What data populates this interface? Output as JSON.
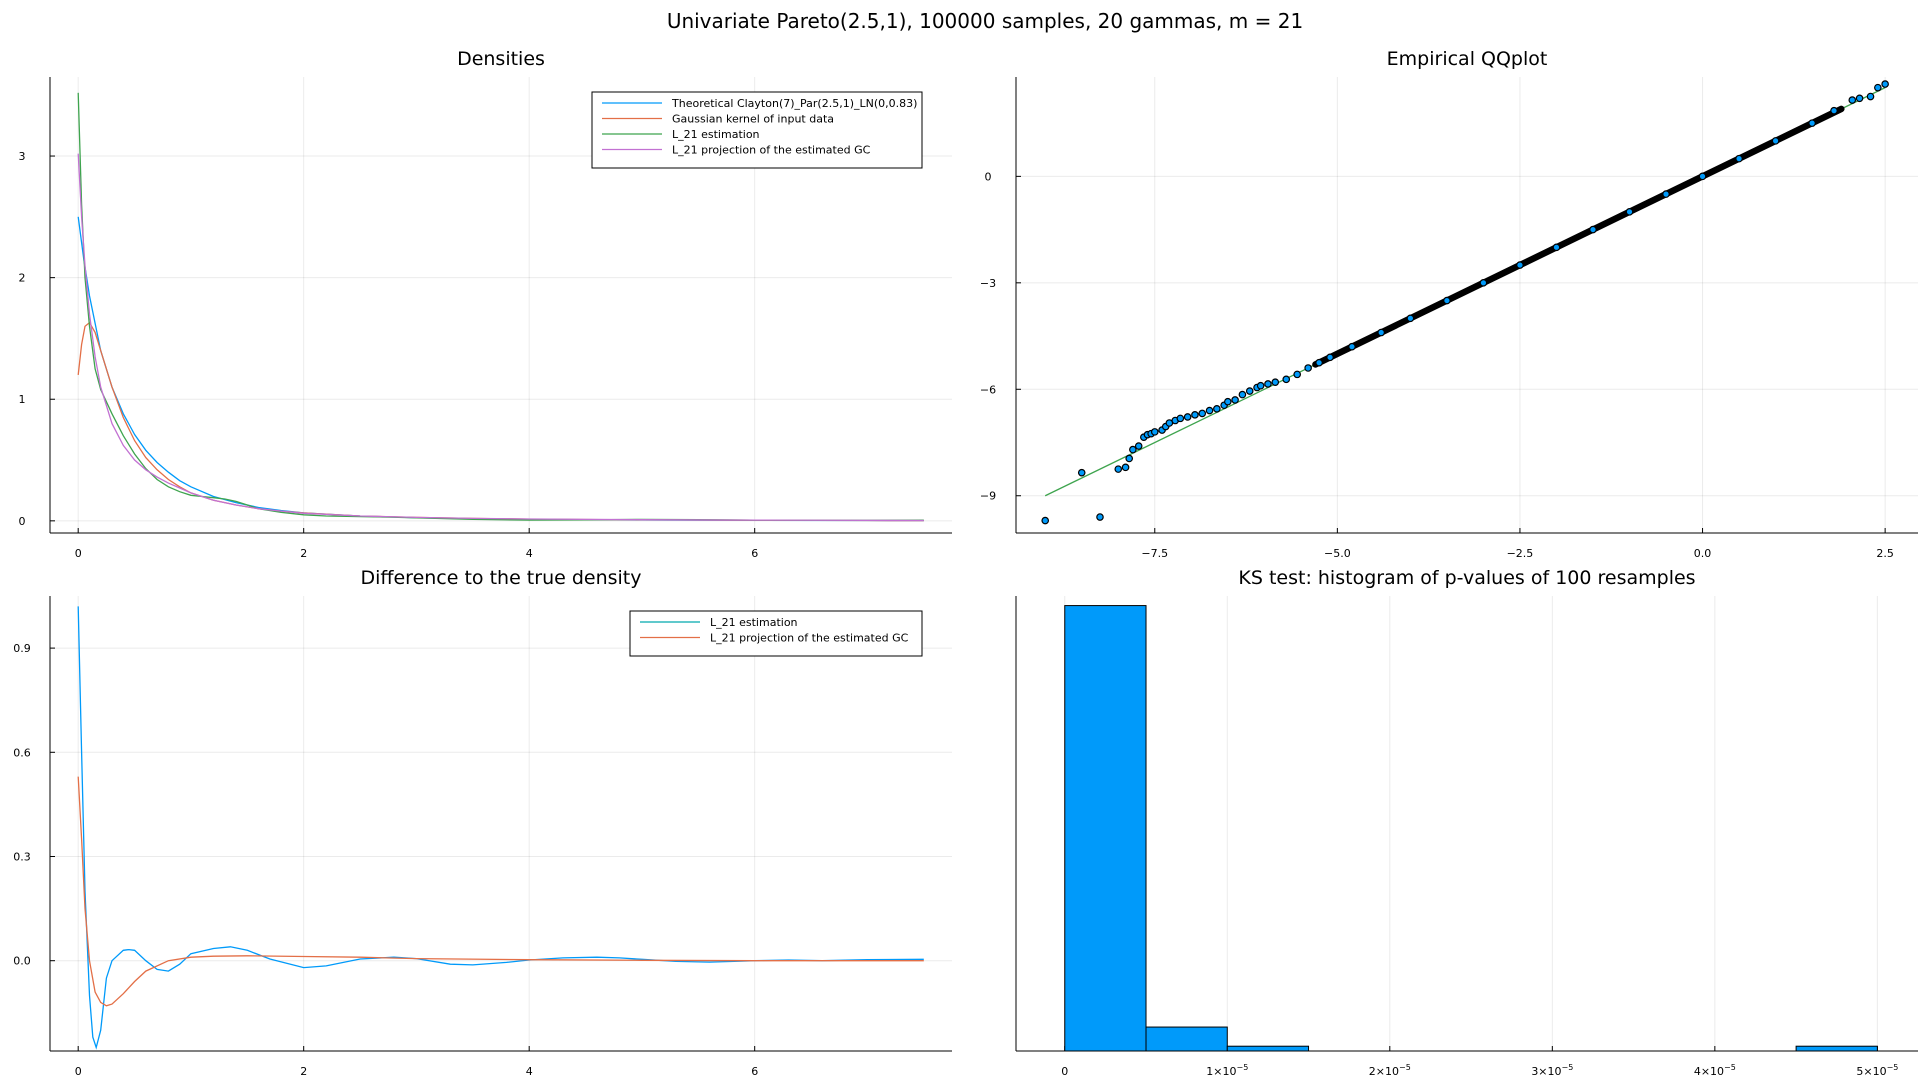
{
  "suptitle": "Univariate Pareto(2.5,1), 100000 samples, 20 gammas, m = 21",
  "colors": {
    "blue": "#009AFA",
    "orange": "#E36F47",
    "green": "#3EA44E",
    "purple": "#C271D2",
    "teal": "#00A9AD",
    "hist_fill": "#009AFA"
  },
  "chart_data": [
    {
      "type": "line",
      "title": "Densities",
      "xlabel": "",
      "ylabel": "",
      "xlim": [
        -0.25,
        7.75
      ],
      "ylim": [
        -0.1,
        3.65
      ],
      "xticks": [
        0,
        2,
        4,
        6
      ],
      "xtick_labels": [
        "0",
        "2",
        "4",
        "6"
      ],
      "yticks": [
        0,
        1,
        2,
        3
      ],
      "ytick_labels": [
        "0",
        "1",
        "2",
        "3"
      ],
      "legend_position": "top-right",
      "series": [
        {
          "name": "Theoretical Clayton(7)_Par(2.5,1)_LN(0,0.83)",
          "color": "#009AFA",
          "x": [
            0,
            0.05,
            0.1,
            0.2,
            0.3,
            0.4,
            0.5,
            0.6,
            0.7,
            0.8,
            0.9,
            1.0,
            1.2,
            1.4,
            1.6,
            1.8,
            2.0,
            2.5,
            3.0,
            3.5,
            4.0,
            5.0,
            6.0,
            7.0,
            7.5
          ],
          "y": [
            2.5,
            2.15,
            1.85,
            1.4,
            1.1,
            0.88,
            0.71,
            0.58,
            0.48,
            0.4,
            0.33,
            0.28,
            0.2,
            0.15,
            0.11,
            0.085,
            0.065,
            0.04,
            0.026,
            0.018,
            0.013,
            0.007,
            0.004,
            0.003,
            0.002
          ]
        },
        {
          "name": "Gaussian kernel of input data",
          "color": "#E36F47",
          "x": [
            0,
            0.03,
            0.06,
            0.1,
            0.15,
            0.2,
            0.3,
            0.4,
            0.5,
            0.6,
            0.7,
            0.8,
            0.9,
            1.0,
            1.2,
            1.4,
            1.6,
            1.8,
            2.0,
            2.5,
            3.0,
            3.5,
            4.0,
            5.0,
            6.0,
            7.0,
            7.5
          ],
          "y": [
            1.2,
            1.45,
            1.6,
            1.63,
            1.55,
            1.4,
            1.1,
            0.85,
            0.66,
            0.52,
            0.42,
            0.34,
            0.28,
            0.23,
            0.17,
            0.13,
            0.1,
            0.08,
            0.065,
            0.04,
            0.028,
            0.02,
            0.014,
            0.008,
            0.005,
            0.003,
            0.002
          ]
        },
        {
          "name": "L_21 estimation",
          "color": "#3EA44E",
          "x": [
            0,
            0.03,
            0.06,
            0.1,
            0.15,
            0.2,
            0.3,
            0.4,
            0.5,
            0.6,
            0.7,
            0.8,
            0.9,
            1.0,
            1.1,
            1.2,
            1.3,
            1.4,
            1.5,
            1.6,
            1.8,
            2.0,
            2.2,
            2.5,
            2.8,
            3.0,
            3.5,
            4.0,
            4.5,
            5.0,
            5.5,
            6.0,
            6.5,
            7.0,
            7.5
          ],
          "y": [
            3.52,
            2.6,
            2.0,
            1.6,
            1.25,
            1.08,
            0.88,
            0.7,
            0.55,
            0.43,
            0.34,
            0.28,
            0.24,
            0.21,
            0.2,
            0.19,
            0.18,
            0.16,
            0.13,
            0.1,
            0.07,
            0.05,
            0.04,
            0.035,
            0.03,
            0.025,
            0.012,
            0.006,
            0.008,
            0.012,
            0.01,
            0.006,
            0.004,
            0.004,
            0.006
          ]
        },
        {
          "name": "L_21 projection of the estimated GC",
          "color": "#C271D2",
          "x": [
            0,
            0.03,
            0.06,
            0.1,
            0.15,
            0.2,
            0.3,
            0.4,
            0.5,
            0.6,
            0.7,
            0.8,
            0.9,
            1.0,
            1.2,
            1.4,
            1.6,
            1.8,
            2.0,
            2.5,
            3.0,
            3.5,
            4.0,
            5.0,
            6.0,
            7.0,
            7.5
          ],
          "y": [
            3.02,
            2.5,
            2.1,
            1.7,
            1.35,
            1.1,
            0.8,
            0.62,
            0.5,
            0.42,
            0.36,
            0.31,
            0.27,
            0.23,
            0.17,
            0.13,
            0.1,
            0.08,
            0.062,
            0.04,
            0.028,
            0.02,
            0.015,
            0.009,
            0.006,
            0.004,
            0.003
          ]
        }
      ]
    },
    {
      "type": "scatter",
      "title": "Empirical QQplot",
      "xlabel": "",
      "ylabel": "",
      "xlim": [
        -9.4,
        2.95
      ],
      "ylim": [
        -10.05,
        2.8
      ],
      "xticks": [
        -7.5,
        -5.0,
        -2.5,
        0.0,
        2.5
      ],
      "xtick_labels": [
        "−7.5",
        "−5.0",
        "−2.5",
        "0.0",
        "2.5"
      ],
      "yticks": [
        -9,
        -6,
        -3,
        0
      ],
      "ytick_labels": [
        "−9",
        "−6",
        "−3",
        "0"
      ],
      "legend_position": "none",
      "reference_line": {
        "color": "#3EA44E",
        "x": [
          -9.0,
          2.5
        ],
        "y": [
          -9.0,
          2.5
        ]
      },
      "points_color": "#009AFA",
      "points": {
        "x": [
          -9.0,
          -8.25,
          -8.5,
          -8.0,
          -7.9,
          -7.85,
          -7.8,
          -7.72,
          -7.65,
          -7.6,
          -7.55,
          -7.5,
          -7.4,
          -7.35,
          -7.3,
          -7.22,
          -7.15,
          -7.05,
          -6.95,
          -6.85,
          -6.75,
          -6.65,
          -6.55,
          -6.5,
          -6.4,
          -6.3,
          -6.2,
          -6.1,
          -6.05,
          -5.95,
          -5.85,
          -5.7,
          -5.55,
          -5.4,
          -5.25,
          -5.1,
          -4.8,
          -4.4,
          -4.0,
          -3.5,
          -3.0,
          -2.5,
          -2.0,
          -1.5,
          -1.0,
          -0.5,
          0.0,
          0.5,
          1.0,
          1.5,
          1.8,
          2.05,
          2.15,
          2.3,
          2.4,
          2.5
        ],
        "y": [
          -9.7,
          -9.6,
          -8.35,
          -8.25,
          -8.2,
          -7.95,
          -7.7,
          -7.6,
          -7.35,
          -7.28,
          -7.25,
          -7.2,
          -7.15,
          -7.05,
          -6.95,
          -6.88,
          -6.82,
          -6.78,
          -6.72,
          -6.68,
          -6.6,
          -6.55,
          -6.45,
          -6.35,
          -6.3,
          -6.15,
          -6.05,
          -5.95,
          -5.9,
          -5.85,
          -5.8,
          -5.72,
          -5.58,
          -5.4,
          -5.25,
          -5.1,
          -4.8,
          -4.4,
          -4.0,
          -3.5,
          -3.0,
          -2.5,
          -2.0,
          -1.5,
          -1.0,
          -0.5,
          0.0,
          0.5,
          1.0,
          1.5,
          1.85,
          2.15,
          2.2,
          2.25,
          2.5,
          2.6
        ]
      }
    },
    {
      "type": "line",
      "title": "Difference to the true density",
      "xlabel": "",
      "ylabel": "",
      "xlim": [
        -0.25,
        7.75
      ],
      "ylim": [
        -0.26,
        1.05
      ],
      "xticks": [
        0,
        2,
        4,
        6
      ],
      "xtick_labels": [
        "0",
        "2",
        "4",
        "6"
      ],
      "yticks": [
        0.0,
        0.3,
        0.6,
        0.9
      ],
      "ytick_labels": [
        "0.0",
        "0.3",
        "0.6",
        "0.9"
      ],
      "legend_position": "top-right",
      "series": [
        {
          "name": "L_21 estimation",
          "color": "#00A9AD",
          "legend_color": "#00A9AD",
          "line_color": "#009AFA",
          "x": [
            0,
            0.03,
            0.06,
            0.1,
            0.13,
            0.16,
            0.2,
            0.25,
            0.3,
            0.4,
            0.45,
            0.5,
            0.6,
            0.7,
            0.8,
            0.9,
            1.0,
            1.2,
            1.35,
            1.5,
            1.7,
            2.0,
            2.2,
            2.5,
            2.8,
            3.0,
            3.3,
            3.5,
            3.8,
            4.0,
            4.3,
            4.6,
            4.8,
            5.0,
            5.3,
            5.6,
            6.0,
            6.3,
            6.6,
            7.0,
            7.5
          ],
          "y": [
            1.02,
            0.6,
            0.2,
            -0.1,
            -0.22,
            -0.25,
            -0.2,
            -0.05,
            0.0,
            0.03,
            0.032,
            0.03,
            0.0,
            -0.025,
            -0.03,
            -0.01,
            0.02,
            0.035,
            0.04,
            0.03,
            0.005,
            -0.02,
            -0.015,
            0.005,
            0.01,
            0.006,
            -0.01,
            -0.012,
            -0.005,
            0.002,
            0.008,
            0.01,
            0.008,
            0.004,
            -0.002,
            -0.004,
            0.0,
            0.002,
            0.0,
            0.003,
            0.004
          ]
        },
        {
          "name": "L_21 projection of the estimated GC",
          "color": "#E36F47",
          "x": [
            0,
            0.03,
            0.06,
            0.1,
            0.15,
            0.2,
            0.25,
            0.3,
            0.4,
            0.5,
            0.6,
            0.8,
            1.0,
            1.2,
            1.5,
            2.0,
            2.5,
            3.0,
            4.0,
            5.0,
            6.0,
            7.0,
            7.5
          ],
          "y": [
            0.53,
            0.35,
            0.15,
            0.0,
            -0.09,
            -0.12,
            -0.13,
            -0.125,
            -0.095,
            -0.06,
            -0.03,
            0.0,
            0.01,
            0.013,
            0.014,
            0.012,
            0.01,
            0.006,
            0.003,
            0.001,
            0.0,
            0.0,
            0.0
          ]
        }
      ]
    },
    {
      "type": "bar",
      "title": "KS test: histogram of p-values of 100 resamples",
      "xlabel": "",
      "ylabel": "",
      "xlim": [
        -3e-06,
        5.25e-05
      ],
      "ylim": [
        0,
        95
      ],
      "xticks": [
        0,
        1e-05,
        2e-05,
        3e-05,
        4e-05,
        5e-05
      ],
      "xtick_labels": [
        {
          "base": "0",
          "exp": ""
        },
        {
          "base": "1×10",
          "exp": "−5"
        },
        {
          "base": "2×10",
          "exp": "−5"
        },
        {
          "base": "3×10",
          "exp": "−5"
        },
        {
          "base": "4×10",
          "exp": "−5"
        },
        {
          "base": "5×10",
          "exp": "−5"
        }
      ],
      "yticks": [],
      "legend_position": "none",
      "bin_edges": [
        0,
        5e-06,
        1e-05,
        1.5e-05,
        2e-05,
        2.5e-05,
        3e-05,
        3.5e-05,
        4e-05,
        4.5e-05,
        5e-05
      ],
      "counts": [
        93,
        5,
        1,
        0,
        0,
        0,
        0,
        0,
        0,
        1
      ]
    }
  ]
}
